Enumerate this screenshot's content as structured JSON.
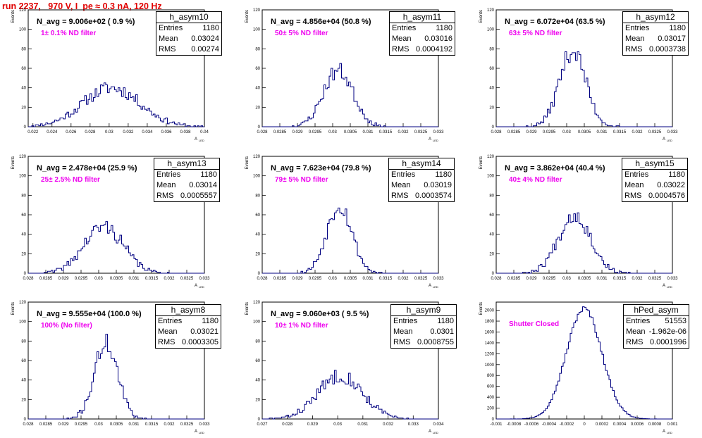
{
  "header": {
    "title": "run 2237,   970 V, I_pe ≈ 0.3 nA, 120 Hz"
  },
  "colors": {
    "histogram": "#000080",
    "title": "#e00000",
    "filter_text": "#ee00ee"
  },
  "stats_labels": {
    "entries": "Entries",
    "mean": "Mean",
    "rms": "RMS"
  },
  "chart_data": [
    {
      "type": "histogram",
      "name": "h_asym10",
      "entries": "1180",
      "mean": "0.03024",
      "rms": "0.00274",
      "navg": "N_avg = 9.006e+02 ( 0.9 %)",
      "filter": "1± 0.1% ND filter",
      "ylabel": "Events",
      "xlabel": "A",
      "x_ticks": [
        "0.022",
        "0.024",
        "0.026",
        "0.028",
        "0.03",
        "0.032",
        "0.034",
        "0.036",
        "0.038",
        "0.04"
      ],
      "y_ticks": [
        "0",
        "20",
        "40",
        "60",
        "80",
        "100",
        "120"
      ],
      "xlim": [
        0.0215,
        0.04
      ],
      "ylim": [
        0,
        120
      ],
      "center": 0.03024,
      "sigma": 0.003,
      "peak": 40,
      "nbins": 100,
      "seed": 11
    },
    {
      "type": "histogram",
      "name": "h_asym11",
      "entries": "1180",
      "mean": "0.03016",
      "rms": "0.0004192",
      "navg": "N_avg = 4.856e+04 (50.8 %)",
      "filter": "50± 5% ND filter",
      "ylabel": "Events",
      "xlabel": "A",
      "x_ticks": [
        "0.028",
        "0.0285",
        "0.029",
        "0.0295",
        "0.03",
        "0.0305",
        "0.031",
        "0.0315",
        "0.032",
        "0.0325",
        "0.033"
      ],
      "y_ticks": [
        "0",
        "20",
        "40",
        "60",
        "80",
        "100",
        "120"
      ],
      "xlim": [
        0.028,
        0.033
      ],
      "ylim": [
        0,
        120
      ],
      "center": 0.03016,
      "sigma": 0.000419,
      "peak": 58,
      "nbins": 100,
      "seed": 23
    },
    {
      "type": "histogram",
      "name": "h_asym12",
      "entries": "1180",
      "mean": "0.03017",
      "rms": "0.0003738",
      "navg": "N_avg = 6.072e+04 (63.5 %)",
      "filter": "63± 5% ND filter",
      "ylabel": "Events",
      "xlabel": "A",
      "x_ticks": [
        "0.028",
        "0.0285",
        "0.029",
        "0.0295",
        "0.03",
        "0.0305",
        "0.031",
        "0.0315",
        "0.032",
        "0.0325",
        "0.033"
      ],
      "y_ticks": [
        "0",
        "20",
        "40",
        "60",
        "80",
        "100",
        "120"
      ],
      "xlim": [
        0.028,
        0.033
      ],
      "ylim": [
        0,
        120
      ],
      "center": 0.03017,
      "sigma": 0.000374,
      "peak": 78,
      "nbins": 100,
      "seed": 37
    },
    {
      "type": "histogram",
      "name": "h_asym13",
      "entries": "1180",
      "mean": "0.03014",
      "rms": "0.0005557",
      "navg": "N_avg = 2.478e+04 (25.9 %)",
      "filter": "25± 2.5% ND filter",
      "ylabel": "Events",
      "xlabel": "A",
      "x_ticks": [
        "0.028",
        "0.0285",
        "0.029",
        "0.0295",
        "0.03",
        "0.0305",
        "0.031",
        "0.0315",
        "0.032",
        "0.0325",
        "0.033"
      ],
      "y_ticks": [
        "0",
        "20",
        "40",
        "60",
        "80",
        "100",
        "120"
      ],
      "xlim": [
        0.028,
        0.033
      ],
      "ylim": [
        0,
        120
      ],
      "center": 0.03014,
      "sigma": 0.000556,
      "peak": 48,
      "nbins": 100,
      "seed": 41
    },
    {
      "type": "histogram",
      "name": "h_asym14",
      "entries": "1180",
      "mean": "0.03019",
      "rms": "0.0003574",
      "navg": "N_avg = 7.623e+04 (79.8 %)",
      "filter": "79± 5% ND filter",
      "ylabel": "Events",
      "xlabel": "A",
      "x_ticks": [
        "0.028",
        "0.0285",
        "0.029",
        "0.0295",
        "0.03",
        "0.0305",
        "0.031",
        "0.0315",
        "0.032",
        "0.0325",
        "0.033"
      ],
      "y_ticks": [
        "0",
        "20",
        "40",
        "60",
        "80",
        "100",
        "120"
      ],
      "xlim": [
        0.028,
        0.033
      ],
      "ylim": [
        0,
        120
      ],
      "center": 0.03019,
      "sigma": 0.000357,
      "peak": 70,
      "nbins": 100,
      "seed": 53
    },
    {
      "type": "histogram",
      "name": "h_asym15",
      "entries": "1180",
      "mean": "0.03022",
      "rms": "0.0004576",
      "navg": "N_avg = 3.862e+04 (40.4 %)",
      "filter": "40± 4% ND filter",
      "ylabel": "Events",
      "xlabel": "A",
      "x_ticks": [
        "0.028",
        "0.0285",
        "0.029",
        "0.0295",
        "0.03",
        "0.0305",
        "0.031",
        "0.0315",
        "0.032",
        "0.0325",
        "0.033"
      ],
      "y_ticks": [
        "0",
        "20",
        "40",
        "60",
        "80",
        "100",
        "120"
      ],
      "xlim": [
        0.028,
        0.033
      ],
      "ylim": [
        0,
        120
      ],
      "center": 0.03022,
      "sigma": 0.000458,
      "peak": 60,
      "nbins": 100,
      "seed": 67
    },
    {
      "type": "histogram",
      "name": "h_asym8",
      "entries": "1180",
      "mean": "0.03021",
      "rms": "0.0003305",
      "navg": "N_avg = 9.555e+04 (100.0 %)",
      "filter": "100% (No filter)",
      "ylabel": "Events",
      "xlabel": "A",
      "x_ticks": [
        "0.028",
        "0.0285",
        "0.029",
        "0.0295",
        "0.03",
        "0.0305",
        "0.031",
        "0.0315",
        "0.032",
        "0.0325",
        "0.033"
      ],
      "y_ticks": [
        "0",
        "20",
        "40",
        "60",
        "80",
        "100",
        "120"
      ],
      "xlim": [
        0.028,
        0.033
      ],
      "ylim": [
        0,
        120
      ],
      "center": 0.03021,
      "sigma": 0.00033,
      "peak": 78,
      "nbins": 100,
      "seed": 71
    },
    {
      "type": "histogram",
      "name": "h_asym9",
      "entries": "1180",
      "mean": "0.0301",
      "rms": "0.0008755",
      "navg": "N_avg = 9.060e+03 ( 9.5 %)",
      "filter": "10± 1% ND filter",
      "ylabel": "Events",
      "xlabel": "A",
      "x_ticks": [
        "0.027",
        "0.028",
        "0.029",
        "0.03",
        "0.031",
        "0.032",
        "0.033",
        "0.034"
      ],
      "y_ticks": [
        "0",
        "20",
        "40",
        "60",
        "80",
        "100",
        "120"
      ],
      "xlim": [
        0.027,
        0.034
      ],
      "ylim": [
        0,
        120
      ],
      "center": 0.0301,
      "sigma": 0.000876,
      "peak": 45,
      "nbins": 100,
      "seed": 83
    },
    {
      "type": "histogram",
      "name": "hPed_asym",
      "entries": "51553",
      "mean": "-1.962e-06",
      "rms": "0.0001996",
      "navg": "",
      "filter": "Shutter Closed",
      "ylabel": "Events",
      "xlabel": "A",
      "x_ticks": [
        "-0.001",
        "-0.0008",
        "-0.0006",
        "-0.0004",
        "-0.0002",
        "0",
        "0.0002",
        "0.0004",
        "0.0006",
        "0.0008",
        "0.001"
      ],
      "y_ticks": [
        "0",
        "200",
        "400",
        "600",
        "800",
        "1000",
        "1200",
        "1400",
        "1600",
        "1800",
        "2000"
      ],
      "xlim": [
        -0.001,
        0.001
      ],
      "ylim": [
        0,
        2150
      ],
      "center": -2e-06,
      "sigma": 0.0002,
      "peak": 2030,
      "nbins": 100,
      "seed": 97
    }
  ]
}
